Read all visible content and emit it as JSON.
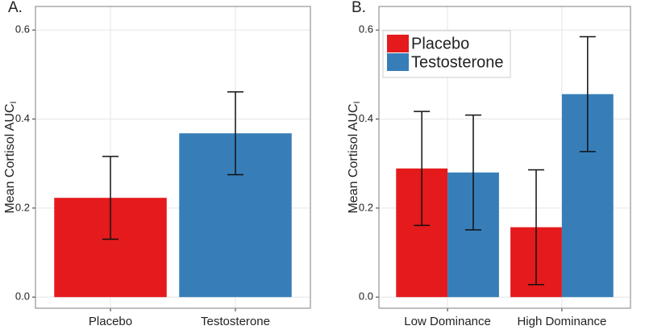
{
  "chart_data": [
    {
      "type": "bar",
      "title": "A.",
      "y_label": "Mean Cortisol AUC",
      "y_label_sub": "I",
      "categories": [
        "Placebo",
        "Testosterone"
      ],
      "values": [
        0.223,
        0.368
      ],
      "errors": [
        0.093,
        0.093
      ],
      "colors": [
        "#e41a1c",
        "#377eb8"
      ],
      "ylim": [
        -0.025,
        0.653
      ],
      "yticks": [
        {
          "value": 0,
          "label": "0.0"
        },
        0.2,
        0.4,
        0.6
      ],
      "grid": true
    },
    {
      "type": "grouped_bar",
      "title": "B.",
      "y_label": "Mean Cortisol AUC",
      "y_label_sub": "I",
      "categories": [
        "Low Dominance",
        "High Dominance"
      ],
      "series": [
        {
          "name": "Placebo",
          "color": "#e41a1c",
          "values": [
            0.289,
            0.157
          ],
          "errors": [
            0.128,
            0.129
          ]
        },
        {
          "name": "Testosterone",
          "color": "#377eb8",
          "values": [
            0.28,
            0.456
          ],
          "errors": [
            0.129,
            0.129
          ]
        }
      ],
      "ylim": [
        -0.025,
        0.653
      ],
      "yticks": [
        {
          "value": 0,
          "label": "0.0"
        },
        0.2,
        0.4,
        0.6
      ],
      "grid": true,
      "legend": "top-left"
    }
  ]
}
